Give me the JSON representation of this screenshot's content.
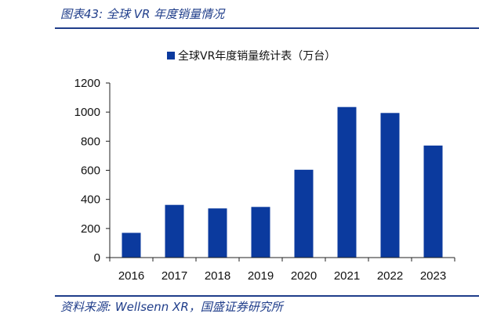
{
  "figure_title": "图表43:  全球 VR 年度销量情况",
  "source_note": "资料来源:  Wellsenn XR，国盛证券研究所",
  "colors": {
    "bar": "#0b3a9e",
    "accent": "#1f3d8a",
    "axis": "#222222"
  },
  "chart_data": {
    "type": "bar",
    "categories": [
      "2016",
      "2017",
      "2018",
      "2019",
      "2020",
      "2021",
      "2022",
      "2023"
    ],
    "series": [
      {
        "name": "全球VR年度销量统计表（万台）",
        "values": [
          170,
          362,
          338,
          348,
          604,
          1035,
          994,
          770
        ]
      }
    ],
    "ylim": [
      0,
      1200
    ],
    "yticks": [
      0,
      200,
      400,
      600,
      800,
      1000,
      1200
    ],
    "grid": false,
    "legend_position": "top-center"
  }
}
